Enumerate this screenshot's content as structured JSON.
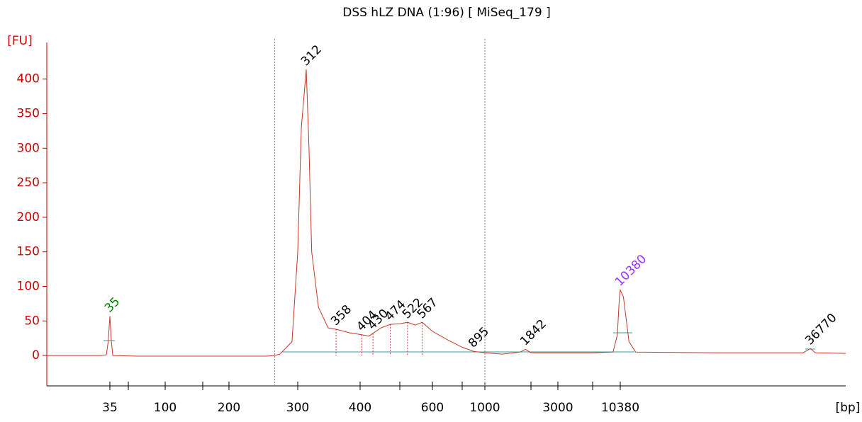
{
  "chart_data": {
    "type": "line",
    "title": "DSS hLZ DNA (1:96)  [ MiSeq_179 ]",
    "y_label": "[FU]",
    "x_label": "[bp]",
    "x_scale": "nonlinear",
    "x": [
      12,
      30,
      33,
      34,
      35,
      36,
      37,
      60,
      150,
      250,
      262,
      270,
      290,
      300,
      305,
      312,
      316,
      320,
      330,
      345,
      358,
      380,
      404,
      420,
      430,
      450,
      474,
      500,
      522,
      545,
      567,
      600,
      700,
      800,
      895,
      1000,
      1300,
      1700,
      1842,
      2000,
      3000,
      6000,
      9000,
      9800,
      10200,
      10380,
      10600,
      11000,
      11500,
      20000,
      35000,
      36770,
      38000,
      46500
    ],
    "series": [
      {
        "color": "#c0392b",
        "values": [
          0,
          0,
          1,
          20,
          57,
          20,
          0,
          -1,
          -1,
          -1,
          0,
          2,
          20,
          150,
          330,
          414,
          300,
          150,
          70,
          40,
          38,
          33,
          30,
          28,
          32,
          40,
          45,
          46,
          48,
          44,
          48,
          35,
          22,
          12,
          6,
          4,
          2,
          5,
          9,
          4,
          4,
          4,
          5,
          30,
          85,
          95,
          85,
          20,
          5,
          4,
          4,
          10,
          4,
          3
        ]
      }
    ],
    "peaks": [
      {
        "bp": 35,
        "fu": 57,
        "color": "#008000"
      },
      {
        "bp": 312,
        "fu": 414,
        "color": "#000000"
      },
      {
        "bp": 358,
        "fu": 38,
        "color": "#000000"
      },
      {
        "bp": 404,
        "fu": 30,
        "color": "#000000"
      },
      {
        "bp": 430,
        "fu": 32,
        "color": "#000000"
      },
      {
        "bp": 474,
        "fu": 45,
        "color": "#000000"
      },
      {
        "bp": 522,
        "fu": 48,
        "color": "#000000"
      },
      {
        "bp": 567,
        "fu": 48,
        "color": "#000000"
      },
      {
        "bp": 895,
        "fu": 6,
        "color": "#000000"
      },
      {
        "bp": 1842,
        "fu": 9,
        "color": "#000000"
      },
      {
        "bp": 10380,
        "fu": 95,
        "color": "#9933ff"
      },
      {
        "bp": 36770,
        "fu": 10,
        "color": "#000000"
      }
    ],
    "region_markers": [
      262,
      1000
    ],
    "xlim": [
      12,
      46500
    ],
    "xticks": [
      35,
      100,
      200,
      300,
      400,
      600,
      1000,
      3000,
      10380
    ],
    "xticks_minor": [
      50,
      150,
      500,
      800,
      2000,
      6000
    ],
    "ylim": [
      -44,
      453
    ],
    "yticks": [
      0,
      50,
      100,
      150,
      200,
      250,
      300,
      350,
      400
    ]
  }
}
